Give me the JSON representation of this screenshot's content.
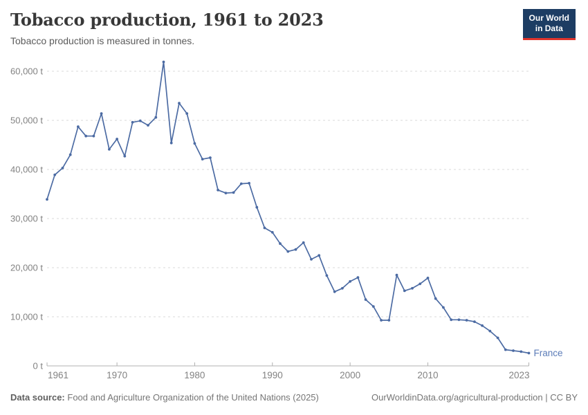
{
  "header": {
    "title": "Tobacco production, 1961 to 2023",
    "subtitle": "Tobacco production is measured in tonnes.",
    "logo": {
      "line1": "Our World",
      "line2": "in Data"
    }
  },
  "chart_data": {
    "type": "line",
    "title": "Tobacco production, 1961 to 2023",
    "subtitle": "Tobacco production is measured in tonnes.",
    "xlabel": "",
    "ylabel": "",
    "unit": "t",
    "grid": "horizontal-dashed",
    "legend_position": "inline-end-label",
    "xlim": [
      1961,
      2023
    ],
    "ylim": [
      0,
      62000
    ],
    "x_ticks": [
      1961,
      1970,
      1980,
      1990,
      2000,
      2010,
      2023
    ],
    "y_ticks": [
      0,
      10000,
      20000,
      30000,
      40000,
      50000,
      60000
    ],
    "series": [
      {
        "name": "France",
        "color": "#4c6ba3",
        "label_color": "#5b7cb8",
        "x": [
          1961,
          1962,
          1963,
          1964,
          1965,
          1966,
          1967,
          1968,
          1969,
          1970,
          1971,
          1972,
          1973,
          1974,
          1975,
          1976,
          1977,
          1978,
          1979,
          1980,
          1981,
          1982,
          1983,
          1984,
          1985,
          1986,
          1987,
          1988,
          1989,
          1990,
          1991,
          1992,
          1993,
          1994,
          1995,
          1996,
          1997,
          1998,
          1999,
          2000,
          2001,
          2002,
          2003,
          2004,
          2005,
          2006,
          2007,
          2008,
          2009,
          2010,
          2011,
          2012,
          2013,
          2014,
          2015,
          2016,
          2017,
          2018,
          2019,
          2020,
          2021,
          2022,
          2023
        ],
        "values": [
          33900,
          38900,
          40300,
          43000,
          48700,
          46800,
          46800,
          51400,
          44100,
          46200,
          42700,
          49600,
          49900,
          49000,
          50600,
          61900,
          45400,
          53500,
          51400,
          45300,
          42100,
          42400,
          35800,
          35200,
          35300,
          37100,
          37200,
          32300,
          28100,
          27200,
          24900,
          23300,
          23700,
          25100,
          21700,
          22500,
          18400,
          15100,
          15800,
          17200,
          18000,
          13500,
          12100,
          9300,
          9300,
          18500,
          15300,
          15800,
          16700,
          17900,
          13700,
          11900,
          9400,
          9400,
          9300,
          9000,
          8200,
          7100,
          5700,
          3300,
          3100,
          2900,
          2600
        ]
      }
    ]
  },
  "footer": {
    "data_source_label": "Data source:",
    "data_source": "Food and Agriculture Organization of the United Nations (2025)",
    "url": "OurWorldinData.org/agricultural-production",
    "separator": " | ",
    "license": "CC BY"
  },
  "colors": {
    "line": "#4c6ba3",
    "gridline": "#dadada",
    "axis": "#b0b0b0",
    "tick_label": "#828282",
    "title": "#383838",
    "subtitle": "#5b5b5b",
    "logo_bg": "#1d3d63",
    "logo_accent": "#e0352c"
  }
}
